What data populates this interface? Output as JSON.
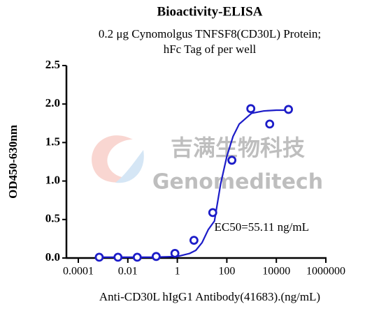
{
  "chart_data": {
    "type": "scatter",
    "title": "Bioactivity-ELISA",
    "subtitle": [
      "0.2 μg Cynomolgus TNFSF8(CD30L) Protein;",
      "hFc Tag of per well"
    ],
    "x_label": "Anti-CD30L hIgG1 Antibody(41683).(ng/mL)",
    "y_label": "OD450-630nm",
    "annotation": "EC50=55.11 ng/mL",
    "watermark": [
      "吉满生物科技",
      "Genomeditech"
    ],
    "x_log": true,
    "xlim": [
      0.0001,
      1000000
    ],
    "xticks": [
      0.0001,
      0.01,
      1,
      100,
      10000,
      1000000
    ],
    "ylim": [
      0,
      2.5
    ],
    "yticks": [
      {
        "value": 0,
        "label": "0.0"
      },
      {
        "value": 0.5,
        "label": "0.5"
      },
      {
        "value": 1,
        "label": "1.0"
      },
      {
        "value": 1.5,
        "label": "1.5"
      },
      {
        "value": 2,
        "label": "2.0"
      },
      {
        "value": 2.5,
        "label": "2.5"
      }
    ],
    "color": "#1c1cc8",
    "x": [
      0.0007,
      0.004,
      0.024,
      0.14,
      0.8,
      4.7,
      27,
      160,
      930,
      5400,
      31000
    ],
    "values": [
      0.01,
      0.01,
      0.01,
      0.02,
      0.06,
      0.23,
      0.59,
      1.27,
      1.94,
      1.74,
      1.93
    ],
    "curve": {
      "x": [
        0.001,
        0.01,
        0.1,
        1,
        3.16,
        5.62,
        10,
        17.8,
        31.6,
        56.2,
        100,
        178,
        316,
        1000,
        3162,
        10000,
        31623
      ],
      "values": [
        0.01,
        0.01,
        0.01,
        0.02,
        0.06,
        0.1,
        0.2,
        0.37,
        0.48,
        0.96,
        1.32,
        1.58,
        1.74,
        1.88,
        1.91,
        1.92,
        1.92
      ]
    }
  }
}
